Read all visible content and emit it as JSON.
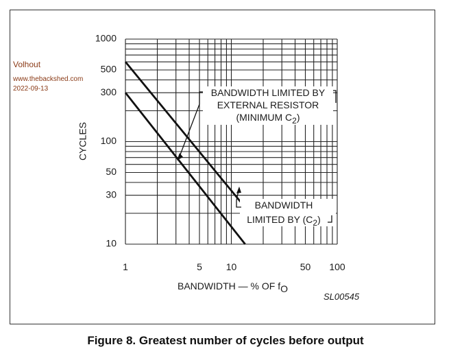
{
  "watermark": {
    "name": "Volhout",
    "site": "www.thebackshed.com",
    "date": "2022-09-13"
  },
  "caption": "Figure 8.  Greatest number of cycles before output",
  "chart_data": {
    "type": "line",
    "x_scale": "log",
    "y_scale": "log",
    "xlabel_main": "BANDWIDTH — % OF f",
    "xlabel_sub": "O",
    "ylabel": "CYCLES",
    "figure_code": "SL00545",
    "xlim": [
      1,
      100
    ],
    "ylim": [
      10,
      1000
    ],
    "x_ticks": [
      {
        "value": 1,
        "label": "1"
      },
      {
        "value": 5,
        "label": "5"
      },
      {
        "value": 10,
        "label": "10"
      },
      {
        "value": 50,
        "label": "50"
      },
      {
        "value": 100,
        "label": "100"
      }
    ],
    "y_ticks": [
      {
        "value": 10,
        "label": "10"
      },
      {
        "value": 30,
        "label": "30"
      },
      {
        "value": 50,
        "label": "50"
      },
      {
        "value": 100,
        "label": "100"
      },
      {
        "value": 300,
        "label": "300"
      },
      {
        "value": 500,
        "label": "500"
      },
      {
        "value": 1000,
        "label": "1000"
      }
    ],
    "x_grid": [
      1,
      2,
      3,
      4,
      5,
      6,
      7,
      8,
      9,
      10,
      20,
      30,
      40,
      50,
      60,
      70,
      80,
      90,
      100
    ],
    "y_grid": [
      10,
      20,
      30,
      40,
      50,
      60,
      70,
      80,
      90,
      100,
      200,
      300,
      400,
      500,
      600,
      700,
      800,
      900,
      1000
    ],
    "series": [
      {
        "name": "BANDWIDTH LIMITED BY EXTERNAL RESISTOR (MINIMUM C2)",
        "x": [
          1,
          15
        ],
        "y": [
          600,
          20
        ]
      },
      {
        "name": "BANDWIDTH LIMITED BY (C2)",
        "x": [
          1,
          13.5
        ],
        "y": [
          300,
          10
        ]
      }
    ],
    "annotations": [
      {
        "id": "upper",
        "lines": [
          {
            "text": "BANDWIDTH LIMITED BY",
            "sub": ""
          },
          {
            "text": "EXTERNAL RESISTOR",
            "sub": ""
          },
          {
            "text": "(MINIMUM C",
            "sub": "2",
            "after": ")"
          }
        ],
        "points_to": {
          "x": 2.3,
          "y": 66
        }
      },
      {
        "id": "lower",
        "lines": [
          {
            "text": "BANDWIDTH",
            "sub": ""
          },
          {
            "text": "LIMITED BY (C",
            "sub": "2",
            "after": ")"
          }
        ],
        "points_to": {
          "x": 10.5,
          "y": 25
        }
      }
    ]
  }
}
